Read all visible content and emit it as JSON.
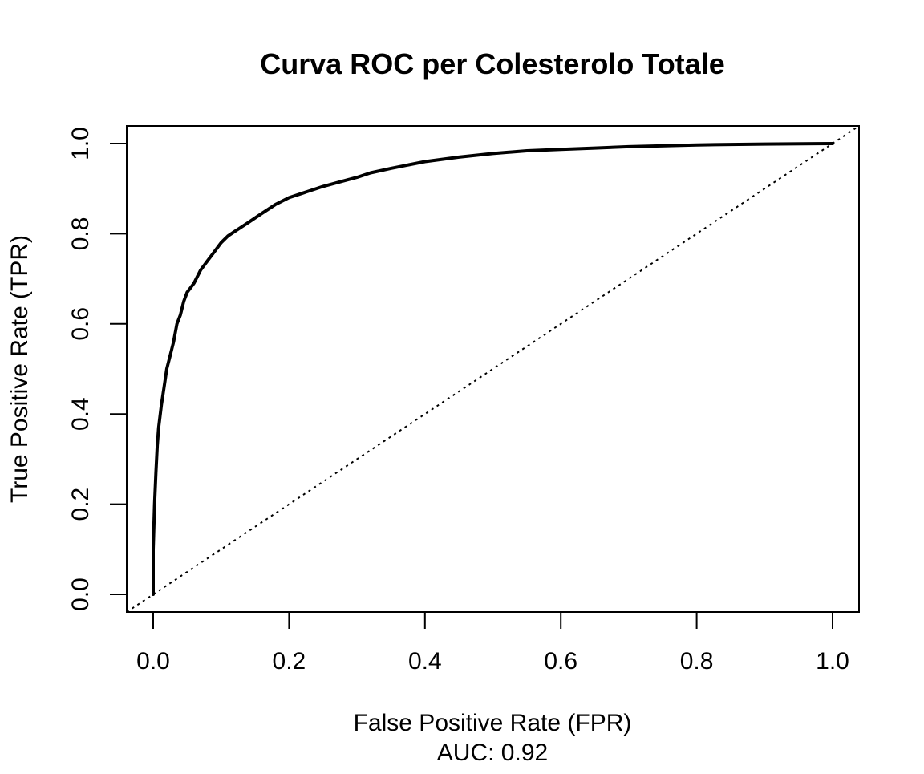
{
  "chart_data": {
    "type": "line",
    "title": "Curva ROC per Colesterolo Totale",
    "xlabel": "False Positive Rate (FPR)",
    "ylabel": "True Positive Rate (TPR)",
    "subtitle": "AUC: 0.92",
    "xlim": [
      0,
      1
    ],
    "ylim": [
      0,
      1
    ],
    "x_ticks": [
      "0.0",
      "0.2",
      "0.4",
      "0.6",
      "0.8",
      "1.0"
    ],
    "y_ticks": [
      "0.0",
      "0.2",
      "0.4",
      "0.6",
      "0.8",
      "1.0"
    ],
    "grid": false,
    "series": [
      {
        "style": "solid",
        "color": "#000000",
        "x": [
          0.0,
          0.0,
          0.002,
          0.004,
          0.006,
          0.008,
          0.012,
          0.016,
          0.02,
          0.025,
          0.03,
          0.035,
          0.04,
          0.045,
          0.05,
          0.055,
          0.06,
          0.07,
          0.08,
          0.09,
          0.1,
          0.11,
          0.12,
          0.13,
          0.14,
          0.15,
          0.16,
          0.18,
          0.2,
          0.22,
          0.25,
          0.28,
          0.3,
          0.32,
          0.35,
          0.4,
          0.45,
          0.5,
          0.55,
          0.6,
          0.65,
          0.7,
          0.8,
          0.9,
          1.0
        ],
        "y": [
          0.0,
          0.1,
          0.2,
          0.27,
          0.33,
          0.37,
          0.42,
          0.46,
          0.5,
          0.53,
          0.56,
          0.6,
          0.62,
          0.65,
          0.67,
          0.68,
          0.69,
          0.72,
          0.74,
          0.76,
          0.78,
          0.795,
          0.805,
          0.815,
          0.825,
          0.835,
          0.845,
          0.865,
          0.88,
          0.89,
          0.905,
          0.917,
          0.925,
          0.935,
          0.945,
          0.96,
          0.97,
          0.978,
          0.984,
          0.987,
          0.99,
          0.993,
          0.997,
          0.999,
          1.0
        ]
      },
      {
        "style": "dotted",
        "color": "#000000",
        "x": [
          0,
          1
        ],
        "y": [
          0,
          1
        ]
      }
    ]
  }
}
